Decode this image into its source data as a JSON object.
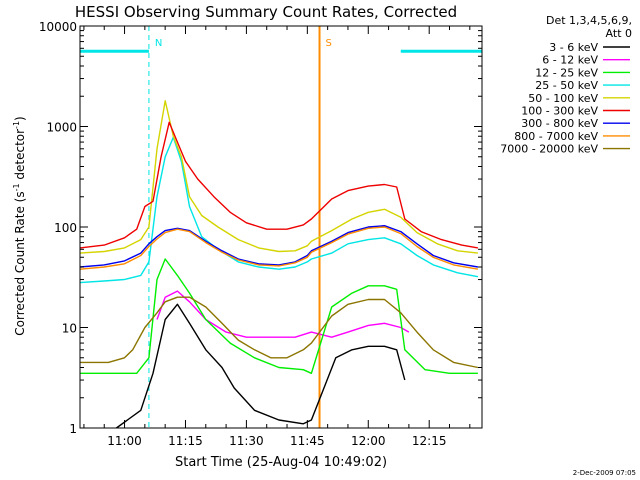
{
  "chart_data": {
    "type": "line",
    "title": "HESSI Observing Summary Count Rates, Corrected",
    "xlabel": "Start Time (25-Aug-04 10:49:02)",
    "ylabel_main": "Corrected Count Rate (s",
    "ylabel_sup1": "-1",
    "ylabel_mid": " detector",
    "ylabel_sup2": "-1",
    "ylabel_end": ")",
    "y_scale": "log",
    "ylim": [
      1,
      10000
    ],
    "xlim": [
      "10:49:02",
      "12:28:00"
    ],
    "x_ticks": [
      {
        "label": "11:00",
        "time": "11:00"
      },
      {
        "label": "11:15",
        "time": "11:15"
      },
      {
        "label": "11:30",
        "time": "11:30"
      },
      {
        "label": "11:45",
        "time": "11:45"
      },
      {
        "label": "12:00",
        "time": "12:00"
      },
      {
        "label": "12:15",
        "time": "12:15"
      }
    ],
    "y_ticks": [
      {
        "label": "1",
        "value": 1
      },
      {
        "label": "10",
        "value": 10
      },
      {
        "label": "100",
        "value": 100
      },
      {
        "label": "1000",
        "value": 1000
      },
      {
        "label": "10000",
        "value": 10000
      }
    ],
    "legend_title_line1": "Det 1,3,4,5,6,9,",
    "legend_title_line2": "Att 0",
    "legend_position": "right",
    "timestamp": "2-Dec-2009 07:05",
    "flags": [
      {
        "label": "N",
        "color": "#00e5e5",
        "line": "dashed",
        "time": "11:06"
      },
      {
        "label": "S",
        "color": "#ff8c00",
        "line": "solid",
        "time": "11:48"
      }
    ],
    "night_intervals": [
      {
        "start": "10:49:02",
        "end": "11:06",
        "level": 5600
      },
      {
        "start": "12:08",
        "end": "12:28",
        "level": 5600
      }
    ],
    "series": [
      {
        "name": "3 - 6 keV",
        "color": "#000000",
        "points": [
          [
            "10:58",
            1
          ],
          [
            "11:04",
            1.5
          ],
          [
            "11:07",
            3.5
          ],
          [
            "11:10",
            12
          ],
          [
            "11:13",
            17
          ],
          [
            "11:16",
            11
          ],
          [
            "11:20",
            6
          ],
          [
            "11:24",
            4
          ],
          [
            "11:27",
            2.5
          ],
          [
            "11:32",
            1.5
          ],
          [
            "11:38",
            1.2
          ],
          [
            "11:44",
            1.1
          ],
          [
            "11:46",
            1.2
          ],
          [
            "11:52",
            5
          ],
          [
            "11:56",
            6
          ],
          [
            "12:00",
            6.5
          ],
          [
            "12:04",
            6.5
          ],
          [
            "12:07",
            6
          ],
          [
            "12:09",
            3
          ]
        ]
      },
      {
        "name": "6 - 12 keV",
        "color": "#ff00ff",
        "points": [
          [
            "11:08",
            12
          ],
          [
            "11:10",
            20
          ],
          [
            "11:13",
            23
          ],
          [
            "11:16",
            18
          ],
          [
            "11:20",
            12
          ],
          [
            "11:25",
            9
          ],
          [
            "11:30",
            8
          ],
          [
            "11:36",
            8
          ],
          [
            "11:42",
            8
          ],
          [
            "11:46",
            9
          ],
          [
            "11:51",
            8
          ],
          [
            "11:55",
            9
          ],
          [
            "12:00",
            10.5
          ],
          [
            "12:04",
            11
          ],
          [
            "12:08",
            10
          ],
          [
            "12:10",
            9
          ]
        ]
      },
      {
        "name": "12 - 25 keV",
        "color": "#00ee00",
        "points": [
          [
            "10:49:02",
            3.5
          ],
          [
            "10:58",
            3.5
          ],
          [
            "11:03",
            3.5
          ],
          [
            "11:06",
            5
          ],
          [
            "11:08",
            30
          ],
          [
            "11:10",
            48
          ],
          [
            "11:13",
            33
          ],
          [
            "11:16",
            22
          ],
          [
            "11:20",
            12
          ],
          [
            "11:26",
            7
          ],
          [
            "11:32",
            5
          ],
          [
            "11:38",
            4
          ],
          [
            "11:44",
            3.8
          ],
          [
            "11:46",
            3.5
          ],
          [
            "11:51",
            16
          ],
          [
            "11:56",
            22
          ],
          [
            "12:00",
            26
          ],
          [
            "12:04",
            26
          ],
          [
            "12:07",
            24
          ],
          [
            "12:09",
            6
          ],
          [
            "12:14",
            3.8
          ],
          [
            "12:20",
            3.5
          ],
          [
            "12:27",
            3.5
          ]
        ]
      },
      {
        "name": "25 - 50 keV",
        "color": "#00e5e5",
        "points": [
          [
            "10:49:02",
            28
          ],
          [
            "10:55",
            29
          ],
          [
            "11:00",
            30
          ],
          [
            "11:04",
            33
          ],
          [
            "11:06",
            45
          ],
          [
            "11:08",
            200
          ],
          [
            "11:10",
            500
          ],
          [
            "11:12",
            780
          ],
          [
            "11:14",
            450
          ],
          [
            "11:16",
            160
          ],
          [
            "11:19",
            80
          ],
          [
            "11:23",
            60
          ],
          [
            "11:28",
            45
          ],
          [
            "11:33",
            40
          ],
          [
            "11:38",
            38
          ],
          [
            "11:42",
            40
          ],
          [
            "11:45",
            45
          ],
          [
            "11:46",
            48
          ],
          [
            "11:51",
            55
          ],
          [
            "11:55",
            68
          ],
          [
            "12:00",
            75
          ],
          [
            "12:04",
            78
          ],
          [
            "12:08",
            68
          ],
          [
            "12:12",
            52
          ],
          [
            "12:16",
            42
          ],
          [
            "12:22",
            35
          ],
          [
            "12:27",
            32
          ]
        ]
      },
      {
        "name": "50 - 100 keV",
        "color": "#d4d400",
        "points": [
          [
            "10:49:02",
            55
          ],
          [
            "10:55",
            57
          ],
          [
            "11:00",
            62
          ],
          [
            "11:04",
            75
          ],
          [
            "11:06",
            100
          ],
          [
            "11:08",
            600
          ],
          [
            "11:10",
            1800
          ],
          [
            "11:12",
            800
          ],
          [
            "11:14",
            500
          ],
          [
            "11:16",
            200
          ],
          [
            "11:19",
            130
          ],
          [
            "11:23",
            100
          ],
          [
            "11:28",
            75
          ],
          [
            "11:33",
            62
          ],
          [
            "11:38",
            57
          ],
          [
            "11:42",
            58
          ],
          [
            "11:45",
            65
          ],
          [
            "11:46",
            72
          ],
          [
            "11:51",
            92
          ],
          [
            "11:56",
            120
          ],
          [
            "12:00",
            140
          ],
          [
            "12:04",
            150
          ],
          [
            "12:08",
            125
          ],
          [
            "12:12",
            88
          ],
          [
            "12:17",
            68
          ],
          [
            "12:22",
            58
          ],
          [
            "12:27",
            55
          ]
        ]
      },
      {
        "name": "100 - 300 keV",
        "color": "#ee0000",
        "points": [
          [
            "10:49:02",
            62
          ],
          [
            "10:55",
            66
          ],
          [
            "11:00",
            78
          ],
          [
            "11:03",
            95
          ],
          [
            "11:05",
            160
          ],
          [
            "11:07",
            180
          ],
          [
            "11:09",
            500
          ],
          [
            "11:11",
            1100
          ],
          [
            "11:13",
            700
          ],
          [
            "11:15",
            450
          ],
          [
            "11:18",
            300
          ],
          [
            "11:22",
            200
          ],
          [
            "11:26",
            140
          ],
          [
            "11:30",
            110
          ],
          [
            "11:35",
            95
          ],
          [
            "11:40",
            95
          ],
          [
            "11:44",
            105
          ],
          [
            "11:46",
            120
          ],
          [
            "11:51",
            190
          ],
          [
            "11:55",
            230
          ],
          [
            "12:00",
            255
          ],
          [
            "12:04",
            265
          ],
          [
            "12:07",
            250
          ],
          [
            "12:09",
            120
          ],
          [
            "12:13",
            90
          ],
          [
            "12:18",
            75
          ],
          [
            "12:23",
            66
          ],
          [
            "12:27",
            62
          ]
        ]
      },
      {
        "name": "300 - 800 keV",
        "color": "#0000ee",
        "points": [
          [
            "10:49:02",
            40
          ],
          [
            "10:55",
            42
          ],
          [
            "11:00",
            46
          ],
          [
            "11:04",
            55
          ],
          [
            "11:06",
            68
          ],
          [
            "11:08",
            80
          ],
          [
            "11:10",
            92
          ],
          [
            "11:13",
            97
          ],
          [
            "11:16",
            92
          ],
          [
            "11:20",
            72
          ],
          [
            "11:24",
            58
          ],
          [
            "11:28",
            48
          ],
          [
            "11:33",
            43
          ],
          [
            "11:38",
            42
          ],
          [
            "11:42",
            45
          ],
          [
            "11:45",
            52
          ],
          [
            "11:46",
            58
          ],
          [
            "11:51",
            72
          ],
          [
            "11:55",
            88
          ],
          [
            "12:00",
            100
          ],
          [
            "12:04",
            103
          ],
          [
            "12:08",
            90
          ],
          [
            "12:12",
            68
          ],
          [
            "12:16",
            52
          ],
          [
            "12:21",
            44
          ],
          [
            "12:27",
            40
          ]
        ]
      },
      {
        "name": "800 - 7000 keV",
        "color": "#ff8c00",
        "points": [
          [
            "10:49:02",
            38
          ],
          [
            "10:55",
            40
          ],
          [
            "11:00",
            43
          ],
          [
            "11:04",
            52
          ],
          [
            "11:06",
            64
          ],
          [
            "11:08",
            76
          ],
          [
            "11:10",
            88
          ],
          [
            "11:13",
            95
          ],
          [
            "11:16",
            90
          ],
          [
            "11:20",
            70
          ],
          [
            "11:24",
            56
          ],
          [
            "11:28",
            47
          ],
          [
            "11:33",
            42
          ],
          [
            "11:38",
            41
          ],
          [
            "11:42",
            44
          ],
          [
            "11:45",
            50
          ],
          [
            "11:46",
            56
          ],
          [
            "11:51",
            70
          ],
          [
            "11:55",
            85
          ],
          [
            "12:00",
            97
          ],
          [
            "12:04",
            100
          ],
          [
            "12:08",
            86
          ],
          [
            "12:12",
            64
          ],
          [
            "12:16",
            50
          ],
          [
            "12:21",
            42
          ],
          [
            "12:27",
            38
          ]
        ]
      },
      {
        "name": "7000 - 20000 keV",
        "color": "#8b7500",
        "points": [
          [
            "10:49:02",
            4.5
          ],
          [
            "10:56",
            4.5
          ],
          [
            "11:00",
            5
          ],
          [
            "11:02",
            6
          ],
          [
            "11:05",
            10
          ],
          [
            "11:08",
            14
          ],
          [
            "11:10",
            18
          ],
          [
            "11:13",
            20
          ],
          [
            "11:16",
            20
          ],
          [
            "11:20",
            16
          ],
          [
            "11:24",
            11
          ],
          [
            "11:28",
            7.5
          ],
          [
            "11:32",
            6
          ],
          [
            "11:36",
            5
          ],
          [
            "11:40",
            5
          ],
          [
            "11:44",
            6
          ],
          [
            "11:46",
            7
          ],
          [
            "11:51",
            13
          ],
          [
            "11:55",
            17
          ],
          [
            "12:00",
            19
          ],
          [
            "12:04",
            19
          ],
          [
            "12:08",
            14
          ],
          [
            "12:12",
            9
          ],
          [
            "12:16",
            6
          ],
          [
            "12:21",
            4.5
          ],
          [
            "12:27",
            4
          ]
        ]
      }
    ]
  }
}
